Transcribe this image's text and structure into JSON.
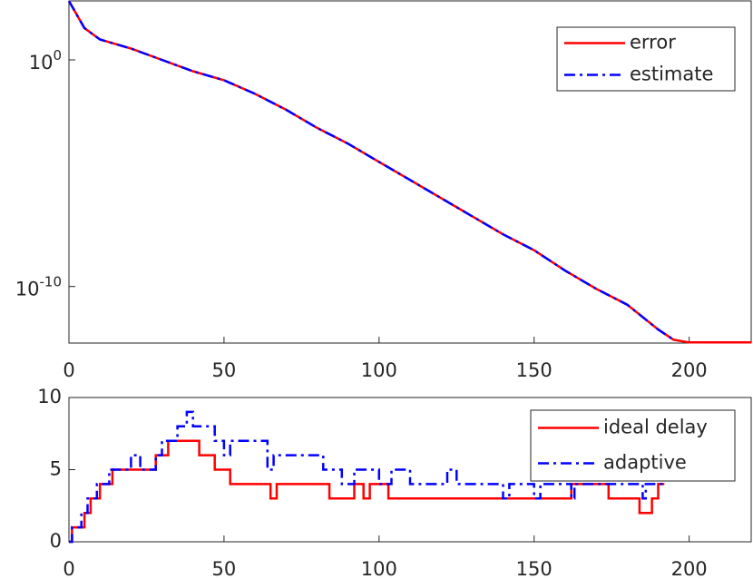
{
  "chart_data": [
    {
      "type": "line",
      "log_y": true,
      "x": [
        0,
        5,
        10,
        20,
        30,
        40,
        50,
        60,
        70,
        80,
        90,
        100,
        110,
        120,
        130,
        140,
        150,
        160,
        170,
        180,
        190,
        195,
        200,
        210,
        220
      ],
      "series": [
        {
          "name": "error",
          "color": "#ff0000",
          "style": "solid",
          "values": [
            398,
            25.1,
            7.94,
            3.16,
            1,
            0.316,
            0.126,
            0.0316,
            0.00631,
            0.001,
            0.0002,
            3.16e-05,
            5.01e-06,
            7.94e-07,
            1.26e-07,
            2e-08,
            3.98e-09,
            5.01e-10,
            7.94e-11,
            1.58e-11,
            1.26e-12,
            4.47e-13,
            3.4e-13,
            3.4e-13,
            3.4e-13
          ]
        },
        {
          "name": "estimate",
          "color": "#0000ff",
          "style": "dashdot",
          "values": [
            398,
            25.1,
            7.94,
            3.16,
            1,
            0.316,
            0.126,
            0.0316,
            0.00631,
            0.001,
            0.0002,
            3.16e-05,
            5.01e-06,
            7.94e-07,
            1.26e-07,
            2e-08,
            3.98e-09,
            5.01e-10,
            7.94e-11,
            1.58e-11,
            1.26e-12,
            4.47e-13,
            null,
            null,
            null
          ]
        }
      ],
      "xlim": [
        0,
        220
      ],
      "xticks": [
        0,
        50,
        100,
        150,
        200
      ],
      "ylim": [
        3.2e-13,
        400
      ],
      "yticks": [
        {
          "value": 1,
          "label": "10^0"
        },
        {
          "value": 1e-10,
          "label": "10^-10"
        }
      ],
      "legend": "upper right"
    },
    {
      "type": "step",
      "series": [
        {
          "name": "ideal delay",
          "color": "#ff0000",
          "style": "solid",
          "x": [
            0,
            1,
            5,
            7,
            10,
            14,
            28,
            32,
            42,
            47,
            52,
            65,
            67,
            84,
            92,
            95,
            97,
            103,
            162,
            174,
            184,
            188,
            190,
            192
          ],
          "values": [
            0,
            1,
            2,
            3,
            4,
            5,
            6,
            7,
            6,
            5,
            4,
            3,
            4,
            3,
            4,
            3,
            4,
            3,
            4,
            3,
            2,
            3,
            4,
            4
          ]
        },
        {
          "name": "adaptive",
          "color": "#0000ff",
          "style": "dashdot",
          "x": [
            0,
            1,
            4,
            6,
            9,
            13,
            20,
            23,
            28,
            30,
            35,
            38,
            40,
            47,
            50,
            52,
            64,
            66,
            82,
            88,
            92,
            100,
            104,
            110,
            122,
            125,
            140,
            142,
            150,
            152,
            162,
            163,
            185,
            186,
            192
          ],
          "values": [
            0,
            1,
            2,
            3,
            4,
            5,
            6,
            5,
            6,
            7,
            8,
            9,
            8,
            7,
            6,
            7,
            5,
            6,
            5,
            4,
            5,
            4,
            5,
            4,
            5,
            4,
            3,
            4,
            3,
            4,
            3,
            4,
            3,
            4,
            4
          ]
        }
      ],
      "xlim": [
        0,
        220
      ],
      "xticks": [
        0,
        50,
        100,
        150,
        200
      ],
      "ylim": [
        0,
        10
      ],
      "yticks": [
        0,
        5,
        10
      ],
      "legend": "upper right"
    }
  ]
}
